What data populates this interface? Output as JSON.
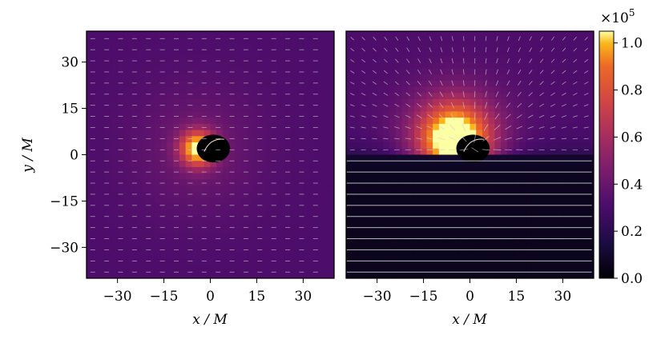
{
  "chart_data": [
    {
      "type": "heatmap",
      "panel": "left",
      "xlabel": "x / M",
      "ylabel": "y / M",
      "xlim": [
        -40,
        40
      ],
      "ylim": [
        -40,
        40
      ],
      "xticks": [
        -30,
        -15,
        0,
        15,
        30
      ],
      "yticks": [
        -30,
        -15,
        0,
        15,
        30
      ],
      "xtick_labels": [
        "−30",
        "−15",
        "0",
        "15",
        "30"
      ],
      "ytick_labels": [
        "−30",
        "−15",
        "0",
        "15",
        "30"
      ],
      "colormap": "inferno",
      "background_level": 0.3,
      "peak": {
        "x": -4,
        "y": 2,
        "level": 1.0,
        "spread": 4
      },
      "black_hole": {
        "x": 1,
        "y": 2,
        "radius": 5
      },
      "vector_field": "uniform horizontal flow"
    },
    {
      "type": "heatmap",
      "panel": "right",
      "xlabel": "x / M",
      "xlim": [
        -40,
        40
      ],
      "ylim": [
        -40,
        40
      ],
      "xticks": [
        -30,
        -15,
        0,
        15,
        30
      ],
      "xtick_labels": [
        "−30",
        "−15",
        "0",
        "15",
        "30"
      ],
      "colormap": "inferno",
      "upper_level": 0.3,
      "lower_level": 0.06,
      "peak": {
        "x": -5,
        "y": 5,
        "level": 1.0,
        "spread": 8
      },
      "black_hole": {
        "x": 1,
        "y": 2,
        "radius": 5
      },
      "vector_field": "radial inflow above y=0, horizontal flow below"
    }
  ],
  "colorbar": {
    "multiplier": "×10",
    "exponent": "5",
    "ticks": [
      "0.0",
      "0.2",
      "0.4",
      "0.6",
      "0.8",
      "1.0"
    ],
    "tick_values": [
      0,
      0.2,
      0.4,
      0.6,
      0.8,
      1.0
    ],
    "max": 1.05
  }
}
